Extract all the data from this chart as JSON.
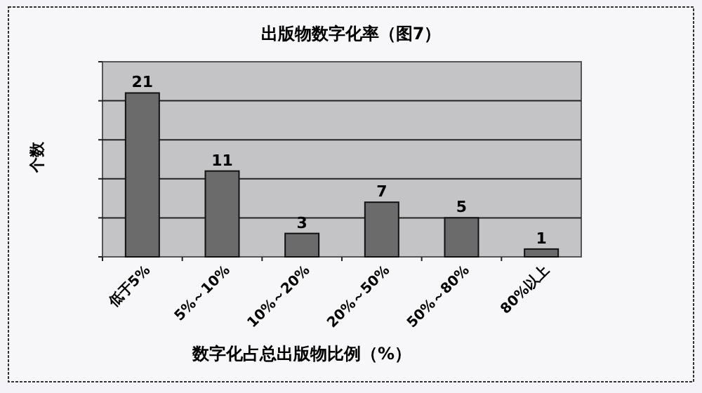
{
  "chart_data": {
    "type": "bar",
    "title": "出版物数字化率（图7）",
    "xlabel": "数字化占总出版物比例（%）",
    "ylabel": "个数",
    "categories": [
      "低于5%",
      "5%～10%",
      "10%～20%",
      "20%～50%",
      "50%～80%",
      "80%以上"
    ],
    "values": [
      21,
      11,
      3,
      7,
      5,
      1
    ],
    "color": "#6b6b6b",
    "data_labels": true,
    "ylim": [
      0,
      25
    ],
    "yticks": [
      {
        "value": 0,
        "label": null
      },
      {
        "value": 5,
        "label": null
      },
      {
        "value": 10,
        "label": null
      },
      {
        "value": 15,
        "label": null
      },
      {
        "value": 20,
        "label": null
      },
      {
        "value": 25,
        "label": null
      }
    ],
    "grid": "y"
  }
}
